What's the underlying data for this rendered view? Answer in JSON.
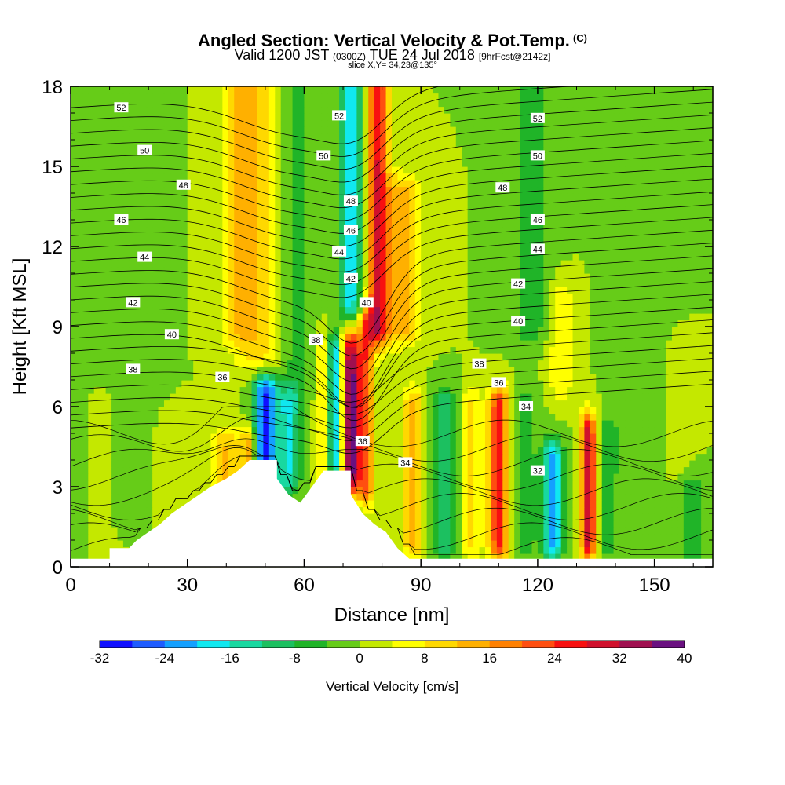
{
  "chart_data": {
    "type": "heatmap",
    "title": "Angled Section: Vertical Velocity & Pot.Temp.",
    "title_tag": "(C)",
    "subtitle": {
      "prefix": "Valid 1200 JST",
      "utc": "(0300Z)",
      "date": "TUE 24 Jul 2018",
      "forecast": "[9hrFcst@2142z]"
    },
    "slice_label": "slice X,Y= 34,23@135°",
    "xlabel": "Distance [nm]",
    "ylabel": "Height [Kft MSL]",
    "xlim": [
      0,
      165
    ],
    "ylim": [
      0,
      18
    ],
    "x_ticks": [
      "0",
      "30",
      "60",
      "90",
      "120",
      "150"
    ],
    "x_tick_values": [
      0,
      30,
      60,
      90,
      120,
      150
    ],
    "y_ticks": [
      "0",
      "3",
      "6",
      "9",
      "12",
      "15",
      "18"
    ],
    "y_tick_values": [
      0,
      3,
      6,
      9,
      12,
      15,
      18
    ],
    "colorbar": {
      "label": "Vertical Velocity [cm/s]",
      "tick_labels": [
        "-32",
        "-24",
        "-16",
        "-8",
        "0",
        "8",
        "16",
        "24",
        "32",
        "40"
      ],
      "levels": [
        -32,
        -28,
        -24,
        -20,
        -16,
        -12,
        -8,
        -4,
        0,
        4,
        8,
        12,
        16,
        20,
        24,
        28,
        32,
        36,
        40
      ],
      "colors": [
        "#1010ff",
        "#1e5cff",
        "#14a0ff",
        "#10e8f0",
        "#18d8a0",
        "#1cc060",
        "#20b428",
        "#66cc18",
        "#c4e800",
        "#ffff00",
        "#ffd800",
        "#ffb000",
        "#ff8000",
        "#ff4e10",
        "#f81010",
        "#d0102c",
        "#a01050",
        "#6a1080"
      ]
    },
    "background_color": "#a8e018",
    "vertical_velocity_features": [
      {
        "x": 2,
        "z0": 0.5,
        "z1": 17.5,
        "w": 5,
        "v": -2
      },
      {
        "x": 8,
        "z0": 0.5,
        "z1": 6,
        "w": 4,
        "v": 4
      },
      {
        "x": 15,
        "z0": 2,
        "z1": 18,
        "w": 6,
        "v": -4
      },
      {
        "x": 28,
        "z0": 0,
        "z1": 5,
        "w": 6,
        "v": 4
      },
      {
        "x": 40,
        "z0": 0.5,
        "z1": 4.5,
        "w": 4,
        "v": 12
      },
      {
        "x": 46,
        "z0": 1.5,
        "z1": 4.5,
        "w": 2,
        "v": 16
      },
      {
        "x": 43,
        "z0": 9,
        "z1": 18,
        "w": 5,
        "v": 8
      },
      {
        "x": 50,
        "z0": 3.5,
        "z1": 6.5,
        "w": 3,
        "v": -28
      },
      {
        "x": 56,
        "z0": 3.5,
        "z1": 6,
        "w": 3,
        "v": -16
      },
      {
        "x": 48,
        "z0": 8,
        "z1": 18,
        "w": 6,
        "v": 10
      },
      {
        "x": 58,
        "z0": 7,
        "z1": 18,
        "w": 4,
        "v": -6
      },
      {
        "x": 65,
        "z0": 3.5,
        "z1": 8,
        "w": 1.8,
        "v": 10
      },
      {
        "x": 68,
        "z0": 4,
        "z1": 8,
        "w": 1.8,
        "v": -24
      },
      {
        "x": 72,
        "z0": 3.5,
        "z1": 8.5,
        "w": 2.5,
        "v": 38
      },
      {
        "x": 76,
        "z0": 3,
        "z1": 9,
        "w": 2,
        "v": 20
      },
      {
        "x": 72,
        "z0": 9,
        "z1": 18,
        "w": 2.5,
        "v": -20
      },
      {
        "x": 79,
        "z0": 9,
        "z1": 18,
        "w": 2.5,
        "v": 28
      },
      {
        "x": 85,
        "z0": 9,
        "z1": 14,
        "w": 5,
        "v": 14
      },
      {
        "x": 88,
        "z0": 1,
        "z1": 6,
        "w": 2.5,
        "v": 14
      },
      {
        "x": 96,
        "z0": 1,
        "z1": 6,
        "w": 3,
        "v": -12
      },
      {
        "x": 103,
        "z0": 1,
        "z1": 6,
        "w": 2.5,
        "v": 10
      },
      {
        "x": 110,
        "z0": 1,
        "z1": 6,
        "w": 2.5,
        "v": 26
      },
      {
        "x": 117,
        "z0": 1,
        "z1": 6,
        "w": 3,
        "v": -6
      },
      {
        "x": 124,
        "z0": 1,
        "z1": 4,
        "w": 2.5,
        "v": -24
      },
      {
        "x": 133,
        "z0": 1,
        "z1": 5,
        "w": 2,
        "v": 32
      },
      {
        "x": 138,
        "z0": 1,
        "z1": 5,
        "w": 3,
        "v": -6
      },
      {
        "x": 126,
        "z0": 7,
        "z1": 10,
        "w": 3,
        "v": 8
      },
      {
        "x": 118,
        "z0": 9,
        "z1": 18,
        "w": 5,
        "v": -6
      },
      {
        "x": 148,
        "z0": 4,
        "z1": 18,
        "w": 6,
        "v": -4
      },
      {
        "x": 156,
        "z0": 4,
        "z1": 8,
        "w": 4,
        "v": 4
      },
      {
        "x": 160,
        "z0": 0.5,
        "z1": 3,
        "w": 4,
        "v": -6
      }
    ],
    "terrain_kft": [
      [
        0,
        0.3
      ],
      [
        10,
        0.3
      ],
      [
        10,
        0.7
      ],
      [
        15,
        0.7
      ],
      [
        17,
        1.0
      ],
      [
        20,
        1.3
      ],
      [
        23,
        1.6
      ],
      [
        26,
        2.0
      ],
      [
        30,
        2.4
      ],
      [
        33,
        2.7
      ],
      [
        36,
        3.0
      ],
      [
        40,
        3.3
      ],
      [
        43,
        3.6
      ],
      [
        46,
        4.0
      ],
      [
        53,
        4.0
      ],
      [
        53,
        3.3
      ],
      [
        56,
        2.7
      ],
      [
        59,
        2.4
      ],
      [
        62,
        3.0
      ],
      [
        65,
        3.6
      ],
      [
        72,
        3.6
      ],
      [
        72,
        2.7
      ],
      [
        75,
        2.0
      ],
      [
        78,
        1.6
      ],
      [
        81,
        1.3
      ],
      [
        84,
        0.7
      ],
      [
        87,
        0.3
      ],
      [
        165,
        0.3
      ]
    ],
    "potential_temperature_labels": [
      {
        "text": "52",
        "x": 13,
        "y": 17.2
      },
      {
        "text": "50",
        "x": 19,
        "y": 15.6
      },
      {
        "text": "48",
        "x": 29,
        "y": 14.3
      },
      {
        "text": "46",
        "x": 13,
        "y": 13.0
      },
      {
        "text": "44",
        "x": 19,
        "y": 11.6
      },
      {
        "text": "42",
        "x": 16,
        "y": 9.9
      },
      {
        "text": "40",
        "x": 26,
        "y": 8.7
      },
      {
        "text": "38",
        "x": 16,
        "y": 7.4
      },
      {
        "text": "36",
        "x": 39,
        "y": 7.1
      },
      {
        "text": "52",
        "x": 69,
        "y": 16.9
      },
      {
        "text": "50",
        "x": 65,
        "y": 15.4
      },
      {
        "text": "48",
        "x": 72,
        "y": 13.7
      },
      {
        "text": "46",
        "x": 72,
        "y": 12.6
      },
      {
        "text": "44",
        "x": 69,
        "y": 11.8
      },
      {
        "text": "42",
        "x": 72,
        "y": 10.8
      },
      {
        "text": "40",
        "x": 76,
        "y": 9.9
      },
      {
        "text": "38",
        "x": 63,
        "y": 8.5
      },
      {
        "text": "36",
        "x": 75,
        "y": 4.7
      },
      {
        "text": "34",
        "x": 86,
        "y": 3.9
      },
      {
        "text": "32",
        "x": 120,
        "y": 3.6
      },
      {
        "text": "52",
        "x": 120,
        "y": 16.8
      },
      {
        "text": "50",
        "x": 120,
        "y": 15.4
      },
      {
        "text": "48",
        "x": 111,
        "y": 14.2
      },
      {
        "text": "46",
        "x": 120,
        "y": 13.0
      },
      {
        "text": "44",
        "x": 120,
        "y": 11.9
      },
      {
        "text": "42",
        "x": 115,
        "y": 10.6
      },
      {
        "text": "40",
        "x": 115,
        "y": 9.2
      },
      {
        "text": "38",
        "x": 105,
        "y": 7.6
      },
      {
        "text": "36",
        "x": 110,
        "y": 6.9
      },
      {
        "text": "34",
        "x": 117,
        "y": 6.0
      }
    ]
  }
}
